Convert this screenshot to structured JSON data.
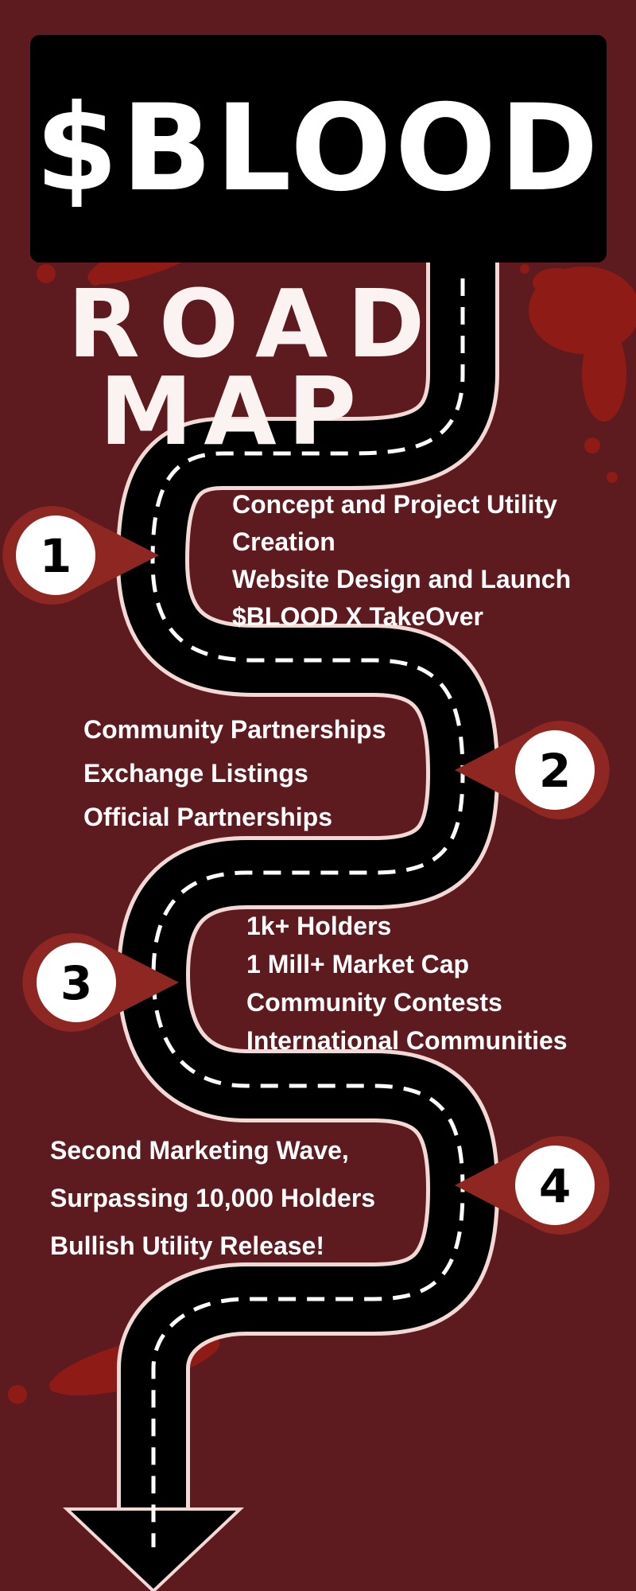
{
  "header": {
    "title": "$BLOOD",
    "subtitle_line1": "ROAD",
    "subtitle_line2": "MAP"
  },
  "colors": {
    "background": "#5d1a1f",
    "road": "#000000",
    "road_edge": "#f3d9d5",
    "marker": "#8e2622",
    "blood_splatter": "#8f1b17",
    "text": "#ffffff"
  },
  "milestones": [
    {
      "number": "1",
      "items": [
        "Concept and Project Utility",
        "Creation",
        "Website Design and Launch",
        "$BLOOD X TakeOver"
      ]
    },
    {
      "number": "2",
      "items": [
        "Community Partnerships",
        "Exchange Listings",
        "Official Partnerships"
      ]
    },
    {
      "number": "3",
      "items": [
        "1k+ Holders",
        "1 Mill+ Market Cap",
        "Community Contests",
        "International Communities"
      ]
    },
    {
      "number": "4",
      "items": [
        "Second Marketing Wave,",
        "Surpassing 10,000 Holders",
        "Bullish Utility Release!"
      ]
    }
  ]
}
